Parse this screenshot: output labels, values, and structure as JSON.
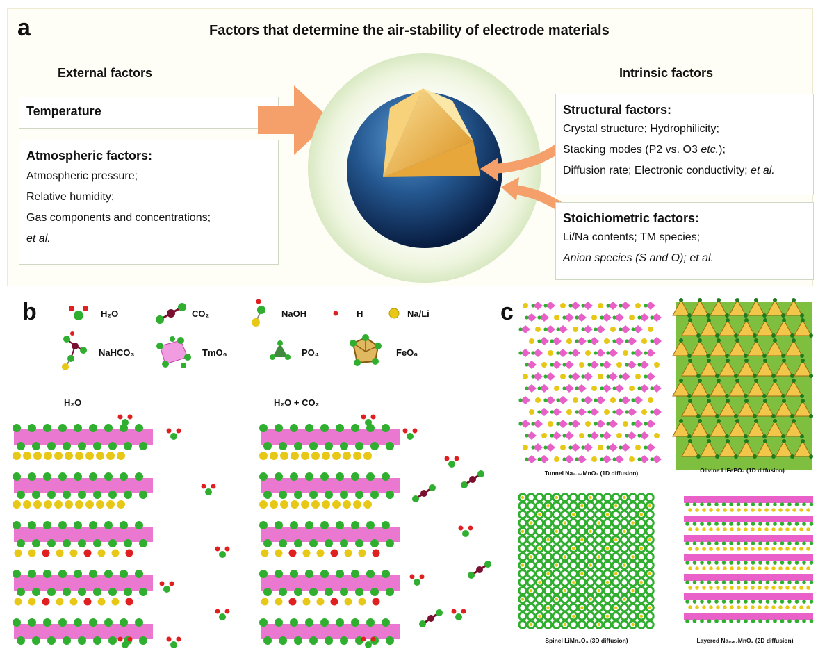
{
  "panel_a": {
    "label": "a",
    "title": "Factors that determine the air-stability of electrode materials",
    "external_heading": "External factors",
    "intrinsic_heading": "Intrinsic factors",
    "temperature": "Temperature",
    "atmospheric": {
      "title": "Atmospheric factors:",
      "lines": [
        "Atmospheric pressure;",
        "Relative humidity;",
        "Gas components and concentrations;",
        "et al."
      ]
    },
    "structural": {
      "title": "Structural factors:",
      "line1": "Crystal structure; Hydrophilicity;",
      "line2_main": "Stacking modes (P2  vs. O3 ",
      "line2_it": "etc.",
      "line2_end": ");",
      "line3_main": "Diffusion rate; Electronic conductivity; ",
      "line3_it": "et al."
    },
    "stoichiometric": {
      "title": "Stoichiometric factors:",
      "line1": "Li/Na contents; TM species;",
      "line2": "Anion species (S and O); et al."
    }
  },
  "panel_b": {
    "label": "b",
    "legend": {
      "h2o": "H₂O",
      "co2": "CO₂",
      "naoh": "NaOH",
      "h": "H",
      "nali": "Na/Li",
      "nahco3": "NaHCO₃",
      "tmo6": "TmO₆",
      "po4": "PO₄",
      "feo6": "FeO₆"
    },
    "scene_left": "H₂O",
    "scene_right": "H₂O + CO₂"
  },
  "panel_c": {
    "label": "c",
    "structures": [
      {
        "name": "Tunnel Na₀.₄₄MnO₂ (1D diffusion)"
      },
      {
        "name": "Olivine LiFePO₄ (1D diffusion)"
      },
      {
        "name": "Spinel LiMn₂O₄ (3D diffusion)"
      },
      {
        "name": "Layered Na₀.₆₇MnO₂ (2D diffusion)"
      }
    ]
  },
  "colors": {
    "arrow": "#f5a06a",
    "sphere_dark": "#0d2a5c",
    "sphere_light": "#3f7fc4",
    "core": "#f2b544",
    "layer": "#e860c8",
    "oxygen": "#2fae2f",
    "sodium": "#e8c817",
    "hydrogen": "#e02020",
    "carbon": "#7a1030"
  },
  "icons": [
    "h2o-molecule-icon",
    "co2-molecule-icon",
    "naoh-molecule-icon",
    "h-atom-icon",
    "na-li-atom-icon",
    "nahco3-molecule-icon",
    "tmo6-octahedron-icon",
    "po4-tetrahedron-icon",
    "feo6-octahedron-icon"
  ]
}
